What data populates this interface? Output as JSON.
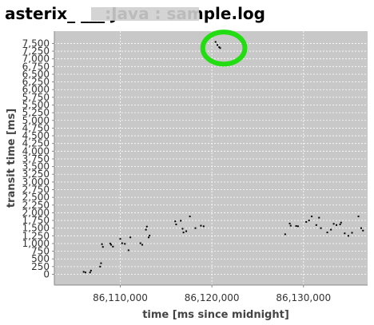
{
  "chart_data": {
    "type": "scatter",
    "title": "asterix_ ___:Java : sample.log",
    "xlabel": "time [ms since midnight]",
    "ylabel": "transit time [ms]",
    "xlim": [
      86102800,
      86137000
    ],
    "ylim": [
      -350,
      7900
    ],
    "x_ticks": [
      86110000,
      86120000,
      86130000
    ],
    "x_tick_labels": [
      "86,110,000",
      "86,120,000",
      "86,130,000"
    ],
    "y_ticks": [
      0,
      250,
      500,
      750,
      1000,
      1250,
      1500,
      1750,
      2000,
      2250,
      2500,
      2750,
      3000,
      3250,
      3500,
      3750,
      4000,
      4250,
      4500,
      4750,
      5000,
      5250,
      5500,
      5750,
      6000,
      6250,
      6500,
      6750,
      7000,
      7250,
      7500
    ],
    "y_tick_labels": [
      "0",
      "250",
      "500",
      "750",
      "1,000",
      "1,250",
      "1,500",
      "1,750",
      "2,000",
      "2,250",
      "2,500",
      "2,750",
      "3,000",
      "3,250",
      "3,500",
      "3,750",
      "4,000",
      "4,250",
      "4,500",
      "4,750",
      "5,000",
      "5,250",
      "5,500",
      "5,750",
      "6,000",
      "6,250",
      "6,500",
      "6,750",
      "7,000",
      "7,250",
      "7,500"
    ],
    "grid": true,
    "series": [
      {
        "points": [
          [
            86106000,
            80
          ],
          [
            86106200,
            60
          ],
          [
            86106700,
            60
          ],
          [
            86106800,
            120
          ],
          [
            86107800,
            250
          ],
          [
            86107900,
            360
          ],
          [
            86108000,
            980
          ],
          [
            86108100,
            890
          ],
          [
            86108900,
            1000
          ],
          [
            86109000,
            960
          ],
          [
            86109200,
            900
          ],
          [
            86110000,
            1150
          ],
          [
            86110200,
            1010
          ],
          [
            86110500,
            990
          ],
          [
            86110900,
            780
          ],
          [
            86111100,
            1200
          ],
          [
            86112200,
            1010
          ],
          [
            86112400,
            960
          ],
          [
            86112800,
            1450
          ],
          [
            86112900,
            1550
          ],
          [
            86113100,
            1200
          ],
          [
            86113200,
            1260
          ],
          [
            86116000,
            1720
          ],
          [
            86116100,
            1620
          ],
          [
            86116600,
            1740
          ],
          [
            86116800,
            1480
          ],
          [
            86116900,
            1360
          ],
          [
            86117200,
            1400
          ],
          [
            86117600,
            1880
          ],
          [
            86118200,
            1500
          ],
          [
            86118800,
            1580
          ],
          [
            86119100,
            1560
          ],
          [
            86120400,
            7550
          ],
          [
            86120600,
            7450
          ],
          [
            86120800,
            7380
          ],
          [
            86120900,
            7350
          ],
          [
            86128000,
            1300
          ],
          [
            86128500,
            1650
          ],
          [
            86128600,
            1580
          ],
          [
            86129200,
            1570
          ],
          [
            86129400,
            1560
          ],
          [
            86130300,
            1700
          ],
          [
            86130600,
            1750
          ],
          [
            86130900,
            1880
          ],
          [
            86131400,
            1600
          ],
          [
            86131700,
            1840
          ],
          [
            86131900,
            1500
          ],
          [
            86132600,
            1360
          ],
          [
            86133000,
            1450
          ],
          [
            86133300,
            1640
          ],
          [
            86133600,
            1600
          ],
          [
            86134000,
            1620
          ],
          [
            86134100,
            1680
          ],
          [
            86134500,
            1330
          ],
          [
            86134900,
            1250
          ],
          [
            86135300,
            1350
          ],
          [
            86136000,
            1880
          ],
          [
            86136300,
            1500
          ],
          [
            86136500,
            1420
          ]
        ]
      }
    ],
    "annotation": {
      "type": "circle",
      "color": "#22dd11",
      "center": [
        86121300,
        7350
      ],
      "rx_data": 2300,
      "ry_data": 520
    },
    "colors": {
      "plot_background": "#c8c8c8",
      "grid": "#ffffff",
      "point": "#000000",
      "annotation": "#22dd11"
    }
  }
}
